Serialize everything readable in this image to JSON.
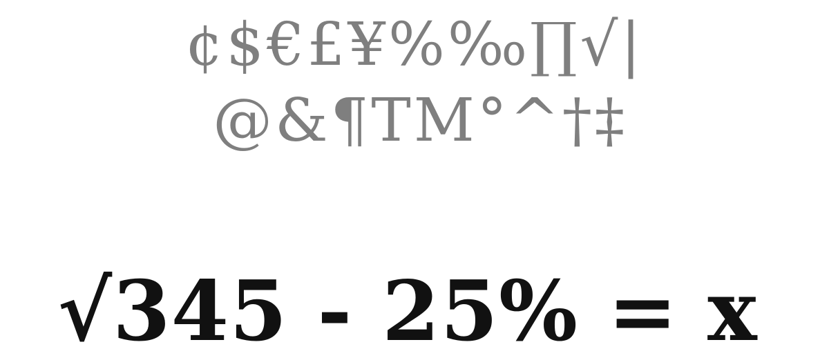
{
  "glyph_rows": [
    "¢$€£¥%‰∏√|",
    "@&¶TM°^†‡"
  ],
  "equation": "√345 - 25% = x",
  "colors": {
    "background": "#ffffff",
    "glyphs": "#7f7f7f",
    "equation": "#111111"
  }
}
